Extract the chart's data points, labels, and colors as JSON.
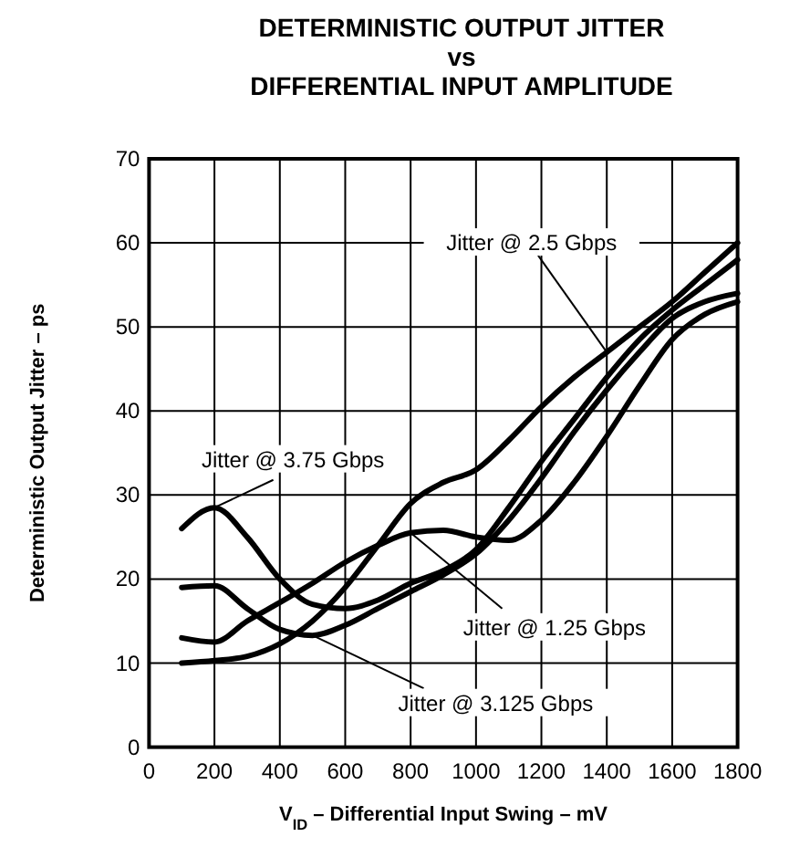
{
  "chart_data": {
    "type": "line",
    "title": "DETERMINISTIC OUTPUT JITTER\nvs\nDIFFERENTIAL INPUT AMPLITUDE",
    "xlabel": "V$_{ID}$ – Differential Input Swing – mV",
    "ylabel": "Deterministic Output Jitter – ps",
    "x": [
      100,
      200,
      300,
      400,
      500,
      600,
      700,
      800,
      900,
      1000,
      1100,
      1200,
      1300,
      1400,
      1500,
      1600,
      1700,
      1800
    ],
    "series": [
      {
        "color": "#000000",
        "values": [
          10,
          10.3,
          10.8,
          12.3,
          15,
          19,
          24,
          29,
          31.5,
          33,
          36.5,
          40.5,
          44,
          47,
          50,
          53,
          56.5,
          60
        ]
      },
      {
        "color": "#000000",
        "values": [
          26,
          28.5,
          25,
          20,
          17,
          16.5,
          17.5,
          19.5,
          21,
          23.5,
          28.5,
          34,
          39,
          44,
          48.5,
          52,
          55,
          58
        ]
      },
      {
        "color": "#000000",
        "values": [
          13,
          12.5,
          15,
          17.2,
          19.5,
          22,
          24,
          25.5,
          25.8,
          25,
          24.6,
          27,
          31.5,
          37,
          43,
          48.5,
          51.5,
          53
        ]
      },
      {
        "color": "#000000",
        "values": [
          19,
          19.2,
          16.5,
          14,
          13.3,
          14.5,
          16.5,
          18.5,
          20.5,
          23,
          27,
          32,
          37.5,
          42.5,
          47,
          51,
          53,
          54
        ]
      }
    ],
    "annotations": [
      {
        "text": "Jitter @ 2.5 Gbps",
        "x": 1400,
        "y": 47
      },
      {
        "text": "Jitter @ 3.75 Gbps",
        "x": 200,
        "y": 28.5
      },
      {
        "text": "Jitter @ 1.25 Gbps",
        "x": 800,
        "y": 25.5
      },
      {
        "text": "Jitter @ 3.125 Gbps",
        "x": 500,
        "y": 13.3
      }
    ],
    "xlim": [
      0,
      1800
    ],
    "xticks": [
      0,
      200,
      400,
      600,
      800,
      1000,
      1200,
      1400,
      1600,
      1800
    ],
    "ylim": [
      0,
      70
    ],
    "yticks": [
      0,
      10,
      20,
      30,
      40,
      50,
      60,
      70
    ],
    "grid": true,
    "legend": false,
    "marker": "none",
    "line_style": "solid"
  }
}
